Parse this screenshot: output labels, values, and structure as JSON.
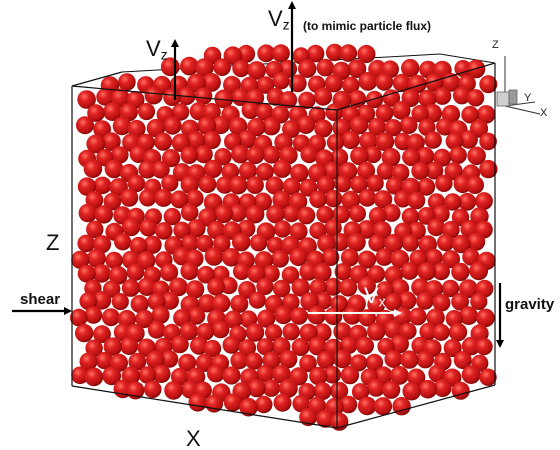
{
  "labels": {
    "vz_top": "V",
    "vz_top_sub": "z",
    "flux_note": "(to mimic particle flux)",
    "vz_box": "V",
    "vz_box_sub": "z",
    "z_axis": "Z",
    "shear": "shear",
    "vx": "V",
    "vx_sub": "x",
    "gravity": "gravity",
    "x_axis": "X"
  },
  "triad": {
    "z": "Z",
    "y": "Y",
    "x": "X"
  },
  "colors": {
    "particle": "#d41c1c",
    "particle_highlight": "#ff6a5a",
    "particle_shadow": "#7a0606",
    "box_edge": "#111111",
    "arrow": "#000000",
    "vx_arrow": "#ffffff"
  }
}
